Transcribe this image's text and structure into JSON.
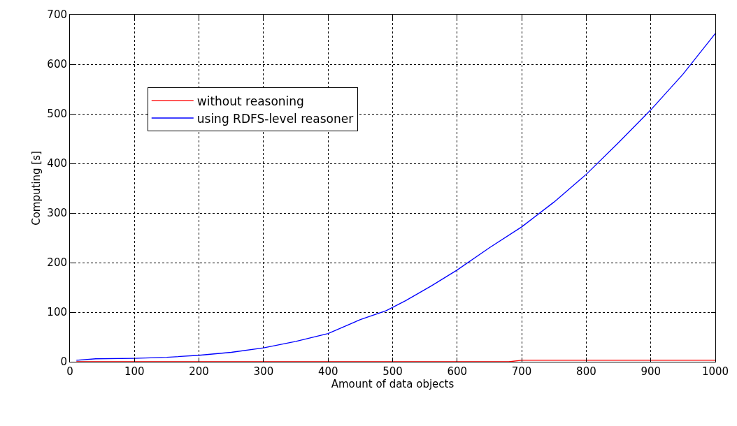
{
  "chart_data": {
    "type": "line",
    "xlabel": "Amount of data objects",
    "ylabel": "Computing [s]",
    "xlim": [
      0,
      1000
    ],
    "xticks": [
      0,
      100,
      200,
      300,
      400,
      500,
      600,
      700,
      800,
      900,
      1000
    ],
    "ylim": [
      0,
      700
    ],
    "yticks": [
      0,
      100,
      200,
      300,
      400,
      500,
      600,
      700
    ],
    "grid": true,
    "legend": "top left",
    "line_style": "solid",
    "marker": "none",
    "series": [
      {
        "name": "without reasoning",
        "color": "#ff0000",
        "x": [
          10,
          100,
          200,
          300,
          400,
          500,
          600,
          680,
          700,
          800,
          900,
          1000
        ],
        "values": [
          0,
          0,
          0,
          0,
          0,
          0,
          0,
          0,
          3,
          3,
          3,
          3
        ]
      },
      {
        "name": "using RDFS-level reasoner",
        "color": "#0000ff",
        "x": [
          10,
          40,
          100,
          150,
          200,
          250,
          300,
          350,
          400,
          450,
          490,
          520,
          560,
          600,
          650,
          700,
          750,
          800,
          850,
          900,
          950,
          1000
        ],
        "values": [
          3,
          6,
          7,
          9,
          13,
          19,
          28,
          41,
          57,
          85,
          103,
          123,
          153,
          185,
          230,
          272,
          322,
          378,
          442,
          508,
          580,
          662
        ]
      }
    ]
  }
}
